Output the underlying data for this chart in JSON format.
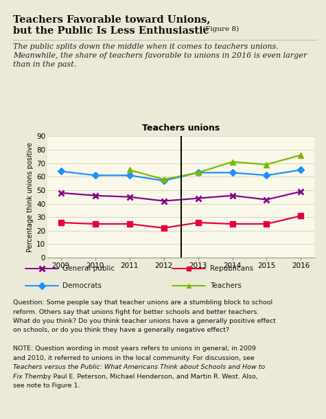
{
  "chart_title": "Teachers unions",
  "years": [
    2009,
    2010,
    2011,
    2012,
    2013,
    2014,
    2015,
    2016
  ],
  "general_public": [
    48,
    46,
    45,
    42,
    44,
    46,
    43,
    49
  ],
  "republicans": [
    26,
    25,
    25,
    22,
    26,
    25,
    25,
    31
  ],
  "democrats": [
    64,
    61,
    61,
    57,
    63,
    63,
    61,
    65
  ],
  "teachers": [
    null,
    null,
    65,
    58,
    63,
    71,
    69,
    76
  ],
  "color_general_public": "#8B008B",
  "color_republicans": "#E8003D",
  "color_democrats": "#1E90FF",
  "color_teachers": "#7CB900",
  "vline_x": 2012.5,
  "ylim": [
    0,
    90
  ],
  "yticks": [
    0,
    10,
    20,
    30,
    40,
    50,
    60,
    70,
    80,
    90
  ],
  "bg_color": "#ebe9d8",
  "bg_color_chart": "#faf8ea",
  "grid_color": "#d8d4b8",
  "title_line1": "Teachers Favorable toward Unions,",
  "title_line2": "but the Public Is Less Enthusiastic",
  "title_fig_suffix": " (Figure 8)",
  "subtitle_line1": "The public splits down the middle when it comes to teachers unions.",
  "subtitle_line2": "Meanwhile, the share of teachers favorable to unions in 2016 is even larger",
  "subtitle_line3": "than in the past.",
  "question_line1": "Question: Some people say that teacher unions are a stumbling block to school",
  "question_line2": "reform. Others say that unions fight for better schools and better teachers.",
  "question_line3": "What do you think? Do you think teacher unions have a generally positive effect",
  "question_line4": "on schools, or do you think they have a generally negative effect?",
  "note_line1": "NOTE: Question wording in most years refers to unions in general; in 2009",
  "note_line2": "and 2010, it referred to unions in the local community. For discussion, see",
  "note_line3_italic": "Teachers versus the Public: What Americans Think about Schools and How to",
  "note_line4_italic_plain": "Fix Them,",
  "note_line4_plain": " by Paul E. Peterson, Michael Henderson, and Martin R. West. Also,",
  "note_line5": "see note to Figure 1.",
  "ylabel": "Percentage think unions positive"
}
